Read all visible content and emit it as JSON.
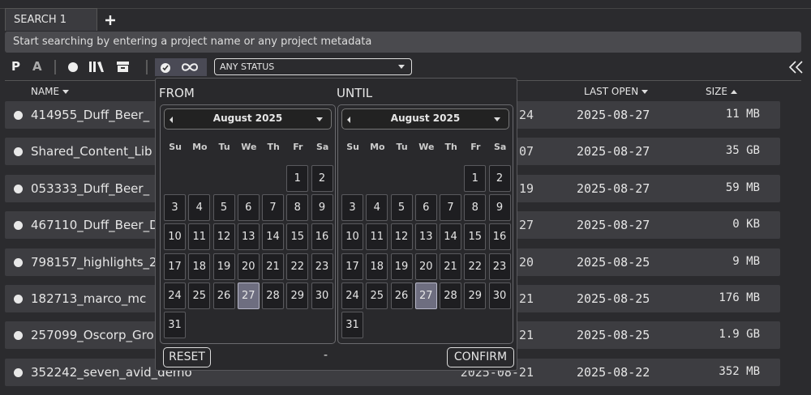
{
  "tabs": [
    {
      "label": "SEARCH 1"
    }
  ],
  "search": {
    "placeholder": "Start searching by entering a project name or any project metadata"
  },
  "toolbar": {
    "text_buttons": [
      "P",
      "A"
    ],
    "status_filter": "ANY STATUS"
  },
  "table": {
    "headers": [
      {
        "label": "NAME"
      },
      {
        "label": "LAST OPEN"
      },
      {
        "label": "SIZE"
      }
    ],
    "rows": [
      {
        "name": "414955_Duff_Beer_",
        "created": "24",
        "last_open": "2025-08-27",
        "size": "11 MB"
      },
      {
        "name": "Shared_Content_Lib",
        "created": "07",
        "last_open": "2025-08-27",
        "size": "35 GB"
      },
      {
        "name": "053333_Duff_Beer_",
        "created": "19",
        "last_open": "2025-08-27",
        "size": "59 MB"
      },
      {
        "name": "467110_Duff_Beer_D",
        "created": "27",
        "last_open": "2025-08-27",
        "size": "0 KB"
      },
      {
        "name": "798157_highlights_2",
        "created": "20",
        "last_open": "2025-08-25",
        "size": "9 MB"
      },
      {
        "name": "182713_marco_mc",
        "created": "21",
        "last_open": "2025-08-25",
        "size": "176 MB"
      },
      {
        "name": "257099_Oscorp_Gro",
        "created": "21",
        "last_open": "2025-08-25",
        "size": "1.9 GB"
      },
      {
        "name": "352242_seven_avid_demo",
        "created": "2025-08-21",
        "last_open": "2025-08-22",
        "size": "352 MB"
      }
    ]
  },
  "date_picker": {
    "from_label": "FROM",
    "until_label": "UNTIL",
    "calendars": [
      {
        "month": "August 2025",
        "weekdays": [
          "Su",
          "Mo",
          "Tu",
          "We",
          "Th",
          "Fr",
          "Sa"
        ],
        "days": [
          1,
          2,
          3,
          4,
          5,
          6,
          7,
          8,
          9,
          10,
          11,
          12,
          13,
          14,
          15,
          16,
          17,
          18,
          19,
          20,
          21,
          22,
          23,
          24,
          25,
          26,
          27,
          28,
          29,
          30,
          31
        ],
        "selected": 27
      },
      {
        "month": "August 2025",
        "weekdays": [
          "Su",
          "Mo",
          "Tu",
          "We",
          "Th",
          "Fr",
          "Sa"
        ],
        "days": [
          1,
          2,
          3,
          4,
          5,
          6,
          7,
          8,
          9,
          10,
          11,
          12,
          13,
          14,
          15,
          16,
          17,
          18,
          19,
          20,
          21,
          22,
          23,
          24,
          25,
          26,
          27,
          28,
          29,
          30,
          31
        ],
        "selected": 27
      }
    ],
    "reset": "RESET",
    "separator": "-",
    "confirm": "CONFIRM"
  }
}
